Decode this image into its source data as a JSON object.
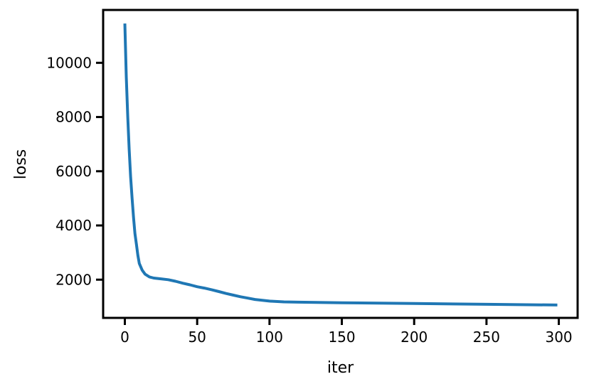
{
  "chart_data": {
    "type": "line",
    "title": "",
    "xlabel": "iter",
    "ylabel": "loss",
    "xlim": [
      -15,
      313
    ],
    "ylim": [
      590,
      11950
    ],
    "grid": false,
    "xticks": [
      0,
      50,
      100,
      150,
      200,
      250,
      300
    ],
    "yticks": [
      2000,
      4000,
      6000,
      8000,
      10000
    ],
    "line_color": "#1f77b4",
    "series": [
      {
        "x": [
          0,
          1,
          2,
          3,
          4,
          5,
          6,
          7,
          8,
          9,
          10,
          12,
          14,
          17,
          20,
          25,
          30,
          35,
          40,
          45,
          50,
          55,
          60,
          65,
          70,
          75,
          80,
          85,
          90,
          95,
          100,
          110,
          120,
          150,
          200,
          250,
          299
        ],
        "y": [
          11450,
          9500,
          8000,
          6800,
          5800,
          5000,
          4300,
          3700,
          3300,
          2900,
          2600,
          2350,
          2200,
          2100,
          2060,
          2030,
          2000,
          1940,
          1870,
          1810,
          1740,
          1690,
          1630,
          1560,
          1490,
          1430,
          1370,
          1320,
          1270,
          1240,
          1210,
          1180,
          1170,
          1150,
          1120,
          1090,
          1065
        ]
      }
    ]
  }
}
